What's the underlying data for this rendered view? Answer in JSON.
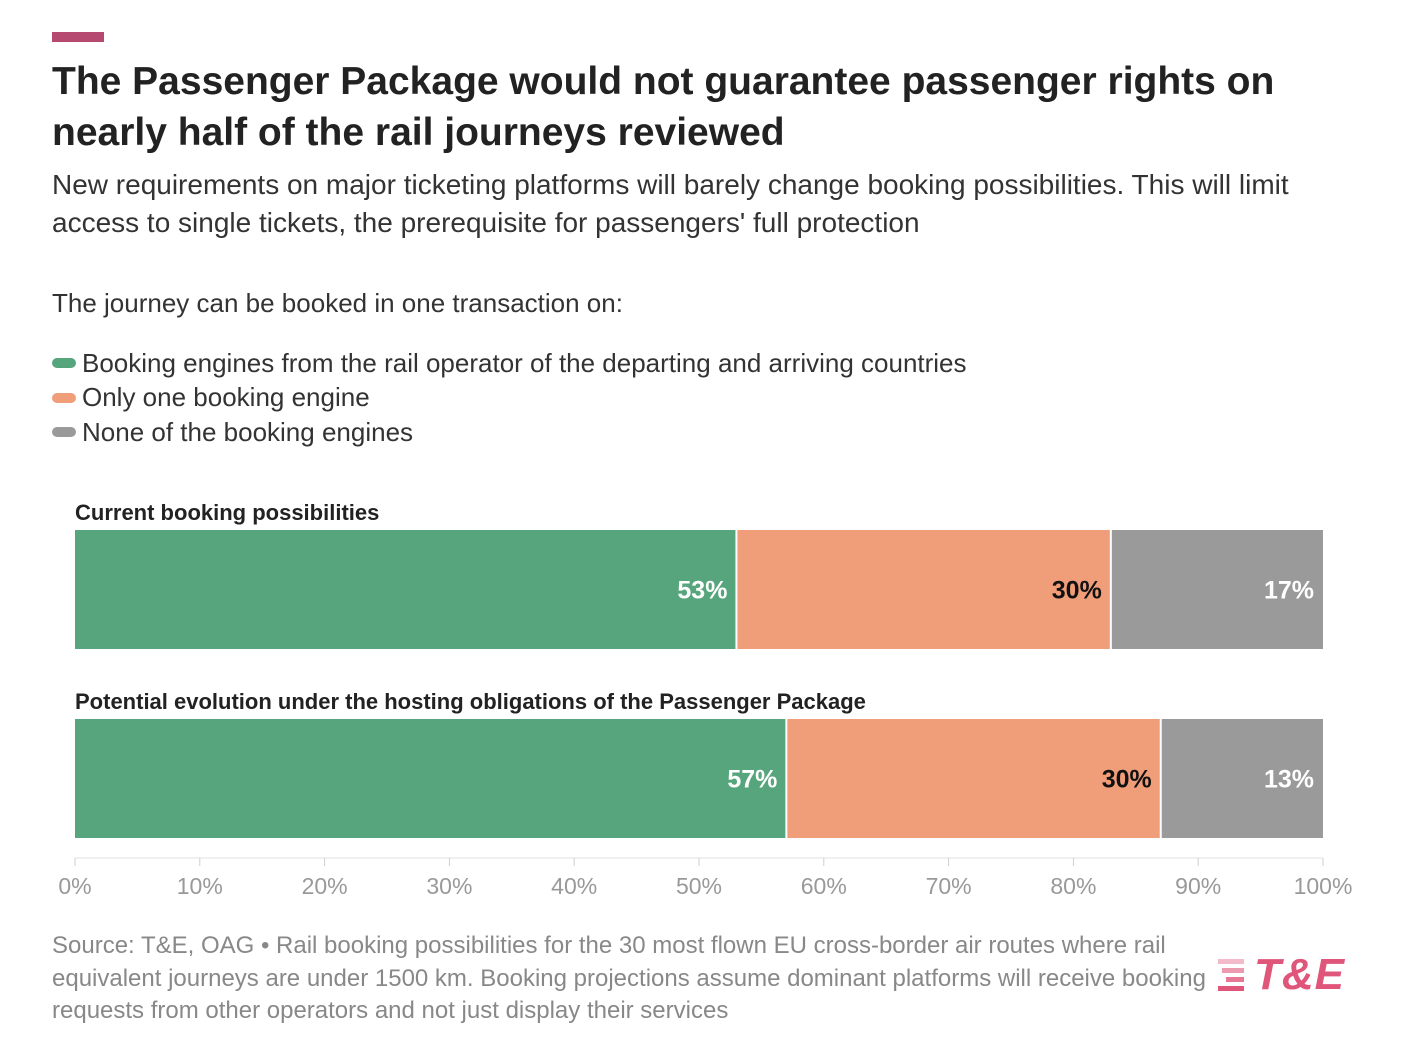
{
  "header": {
    "accent_color": "#b5496f",
    "title": "The Passenger Package would not guarantee passenger rights on nearly half of the rail journeys reviewed",
    "subtitle": "New requirements on major ticketing platforms will barely change booking possibilities. This will limit access to single tickets, the prerequisite for passengers' full protection"
  },
  "intro": "The journey can be booked in one transaction on:",
  "legend": [
    {
      "label": "Booking engines from the rail operator of the departing and arriving countries",
      "color": "#57a57c"
    },
    {
      "label": "Only one booking engine",
      "color": "#f09e79"
    },
    {
      "label": "None of the booking engines",
      "color": "#9a9a9a"
    }
  ],
  "chart_data": {
    "type": "bar",
    "orientation": "horizontal",
    "stacked": true,
    "categories": [
      "Current booking possibilities",
      "Potential evolution under the hosting obligations of the Passenger Package"
    ],
    "series": [
      {
        "name": "Booking engines from the rail operator of the departing and arriving countries",
        "values": [
          53,
          57
        ],
        "color": "#57a57c"
      },
      {
        "name": "Only one booking engine",
        "values": [
          30,
          30
        ],
        "color": "#f09e79"
      },
      {
        "name": "None of the booking engines",
        "values": [
          17,
          13
        ],
        "color": "#9a9a9a"
      }
    ],
    "data_labels": [
      [
        "53%",
        "30%",
        "17%"
      ],
      [
        "57%",
        "30%",
        "13%"
      ]
    ],
    "xlim": [
      0,
      100
    ],
    "x_ticks": [
      "0%",
      "10%",
      "20%",
      "30%",
      "40%",
      "50%",
      "60%",
      "70%",
      "80%",
      "90%",
      "100%"
    ],
    "legend_position": "top-left"
  },
  "footer": {
    "source": "Source: T&E, OAG • Rail booking possibilities for the 30 most flown EU cross-border air routes where rail equivalent journeys are under 1500 km. Booking projections assume dominant platforms will receive booking requests from other operators and not just display their services",
    "logo_text": "T&E",
    "logo_color": "#e0567a"
  }
}
